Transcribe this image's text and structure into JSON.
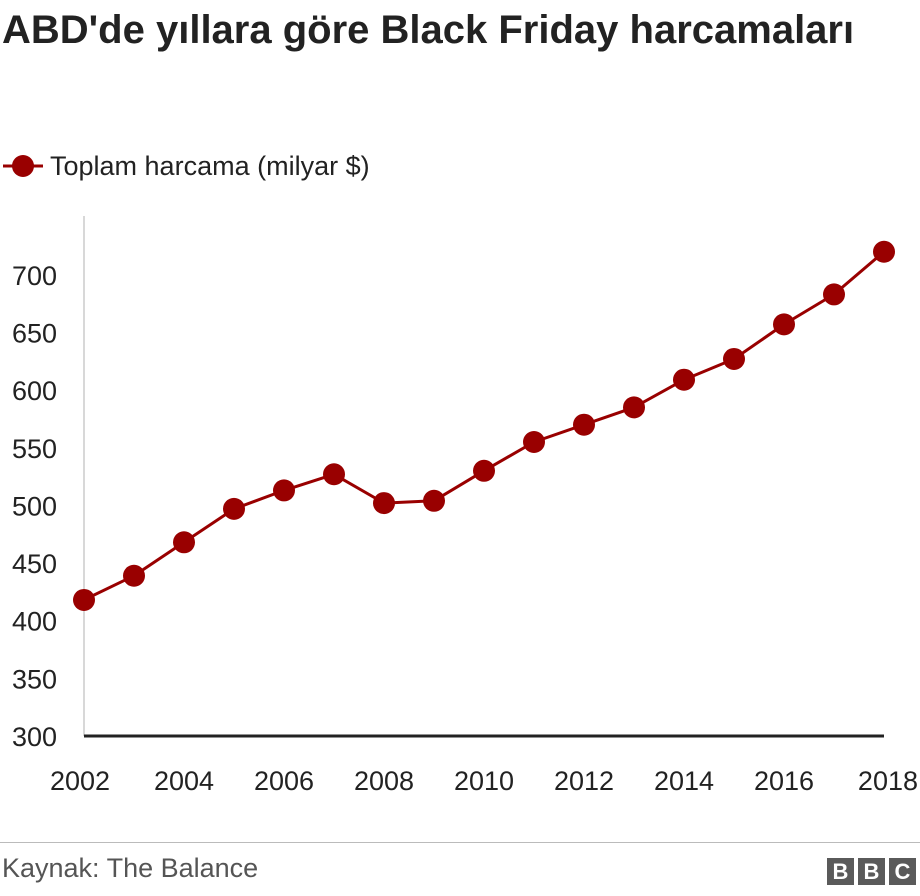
{
  "header": {
    "title": "ABD'de yıllara göre Black Friday harcamaları"
  },
  "legend": {
    "label": "Toplam harcama (milyar $)"
  },
  "footer": {
    "source": "Kaynak: The Balance",
    "logo": [
      "B",
      "B",
      "C"
    ]
  },
  "colors": {
    "series": "#990000",
    "axis": "#222222",
    "gridline": "#cccccc"
  },
  "chart_data": {
    "type": "line",
    "title": "ABD'de yıllara göre Black Friday harcamaları",
    "xlabel": "",
    "ylabel": "",
    "x": [
      2002,
      2003,
      2004,
      2005,
      2006,
      2007,
      2008,
      2009,
      2010,
      2011,
      2012,
      2013,
      2014,
      2015,
      2016,
      2017,
      2018
    ],
    "series": [
      {
        "name": "Toplam harcama (milyar $)",
        "values": [
          418,
          439,
          468,
          497,
          513,
          527,
          502,
          504,
          530,
          555,
          570,
          585,
          609,
          627,
          657,
          683,
          720
        ]
      }
    ],
    "xlim": [
      2002,
      2018
    ],
    "ylim": [
      300,
      750
    ],
    "x_ticks": [
      2002,
      2004,
      2006,
      2008,
      2010,
      2012,
      2014,
      2016,
      2018
    ],
    "y_ticks": [
      300,
      350,
      400,
      450,
      500,
      550,
      600,
      650,
      700
    ],
    "grid": false,
    "legend_position": "top-left"
  }
}
